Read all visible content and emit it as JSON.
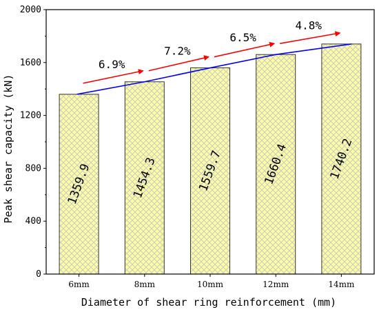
{
  "chart_data": {
    "type": "bar",
    "categories": [
      "6mm",
      "8mm",
      "10mm",
      "12mm",
      "14mm"
    ],
    "values": [
      1359.9,
      1454.3,
      1559.7,
      1660.4,
      1740.2
    ],
    "value_labels": [
      "1359.9",
      "1454.3",
      "1559.7",
      "1660.4",
      "1740.2"
    ],
    "increments": [
      "6.9%",
      "7.2%",
      "6.5%",
      "4.8%"
    ],
    "xlabel": "Diameter of shear ring reinforcement (mm)",
    "ylabel": "Peak shear capacity (kN)",
    "ylim": [
      0,
      2000
    ],
    "yticks": [
      0,
      400,
      800,
      1200,
      1600,
      2000
    ],
    "grid": false,
    "colors": {
      "bar_fill": "#ffff99",
      "bar_hatch": "#d4d4d4",
      "trend_line": "#0000ff",
      "arrow": "#ff0000"
    }
  }
}
